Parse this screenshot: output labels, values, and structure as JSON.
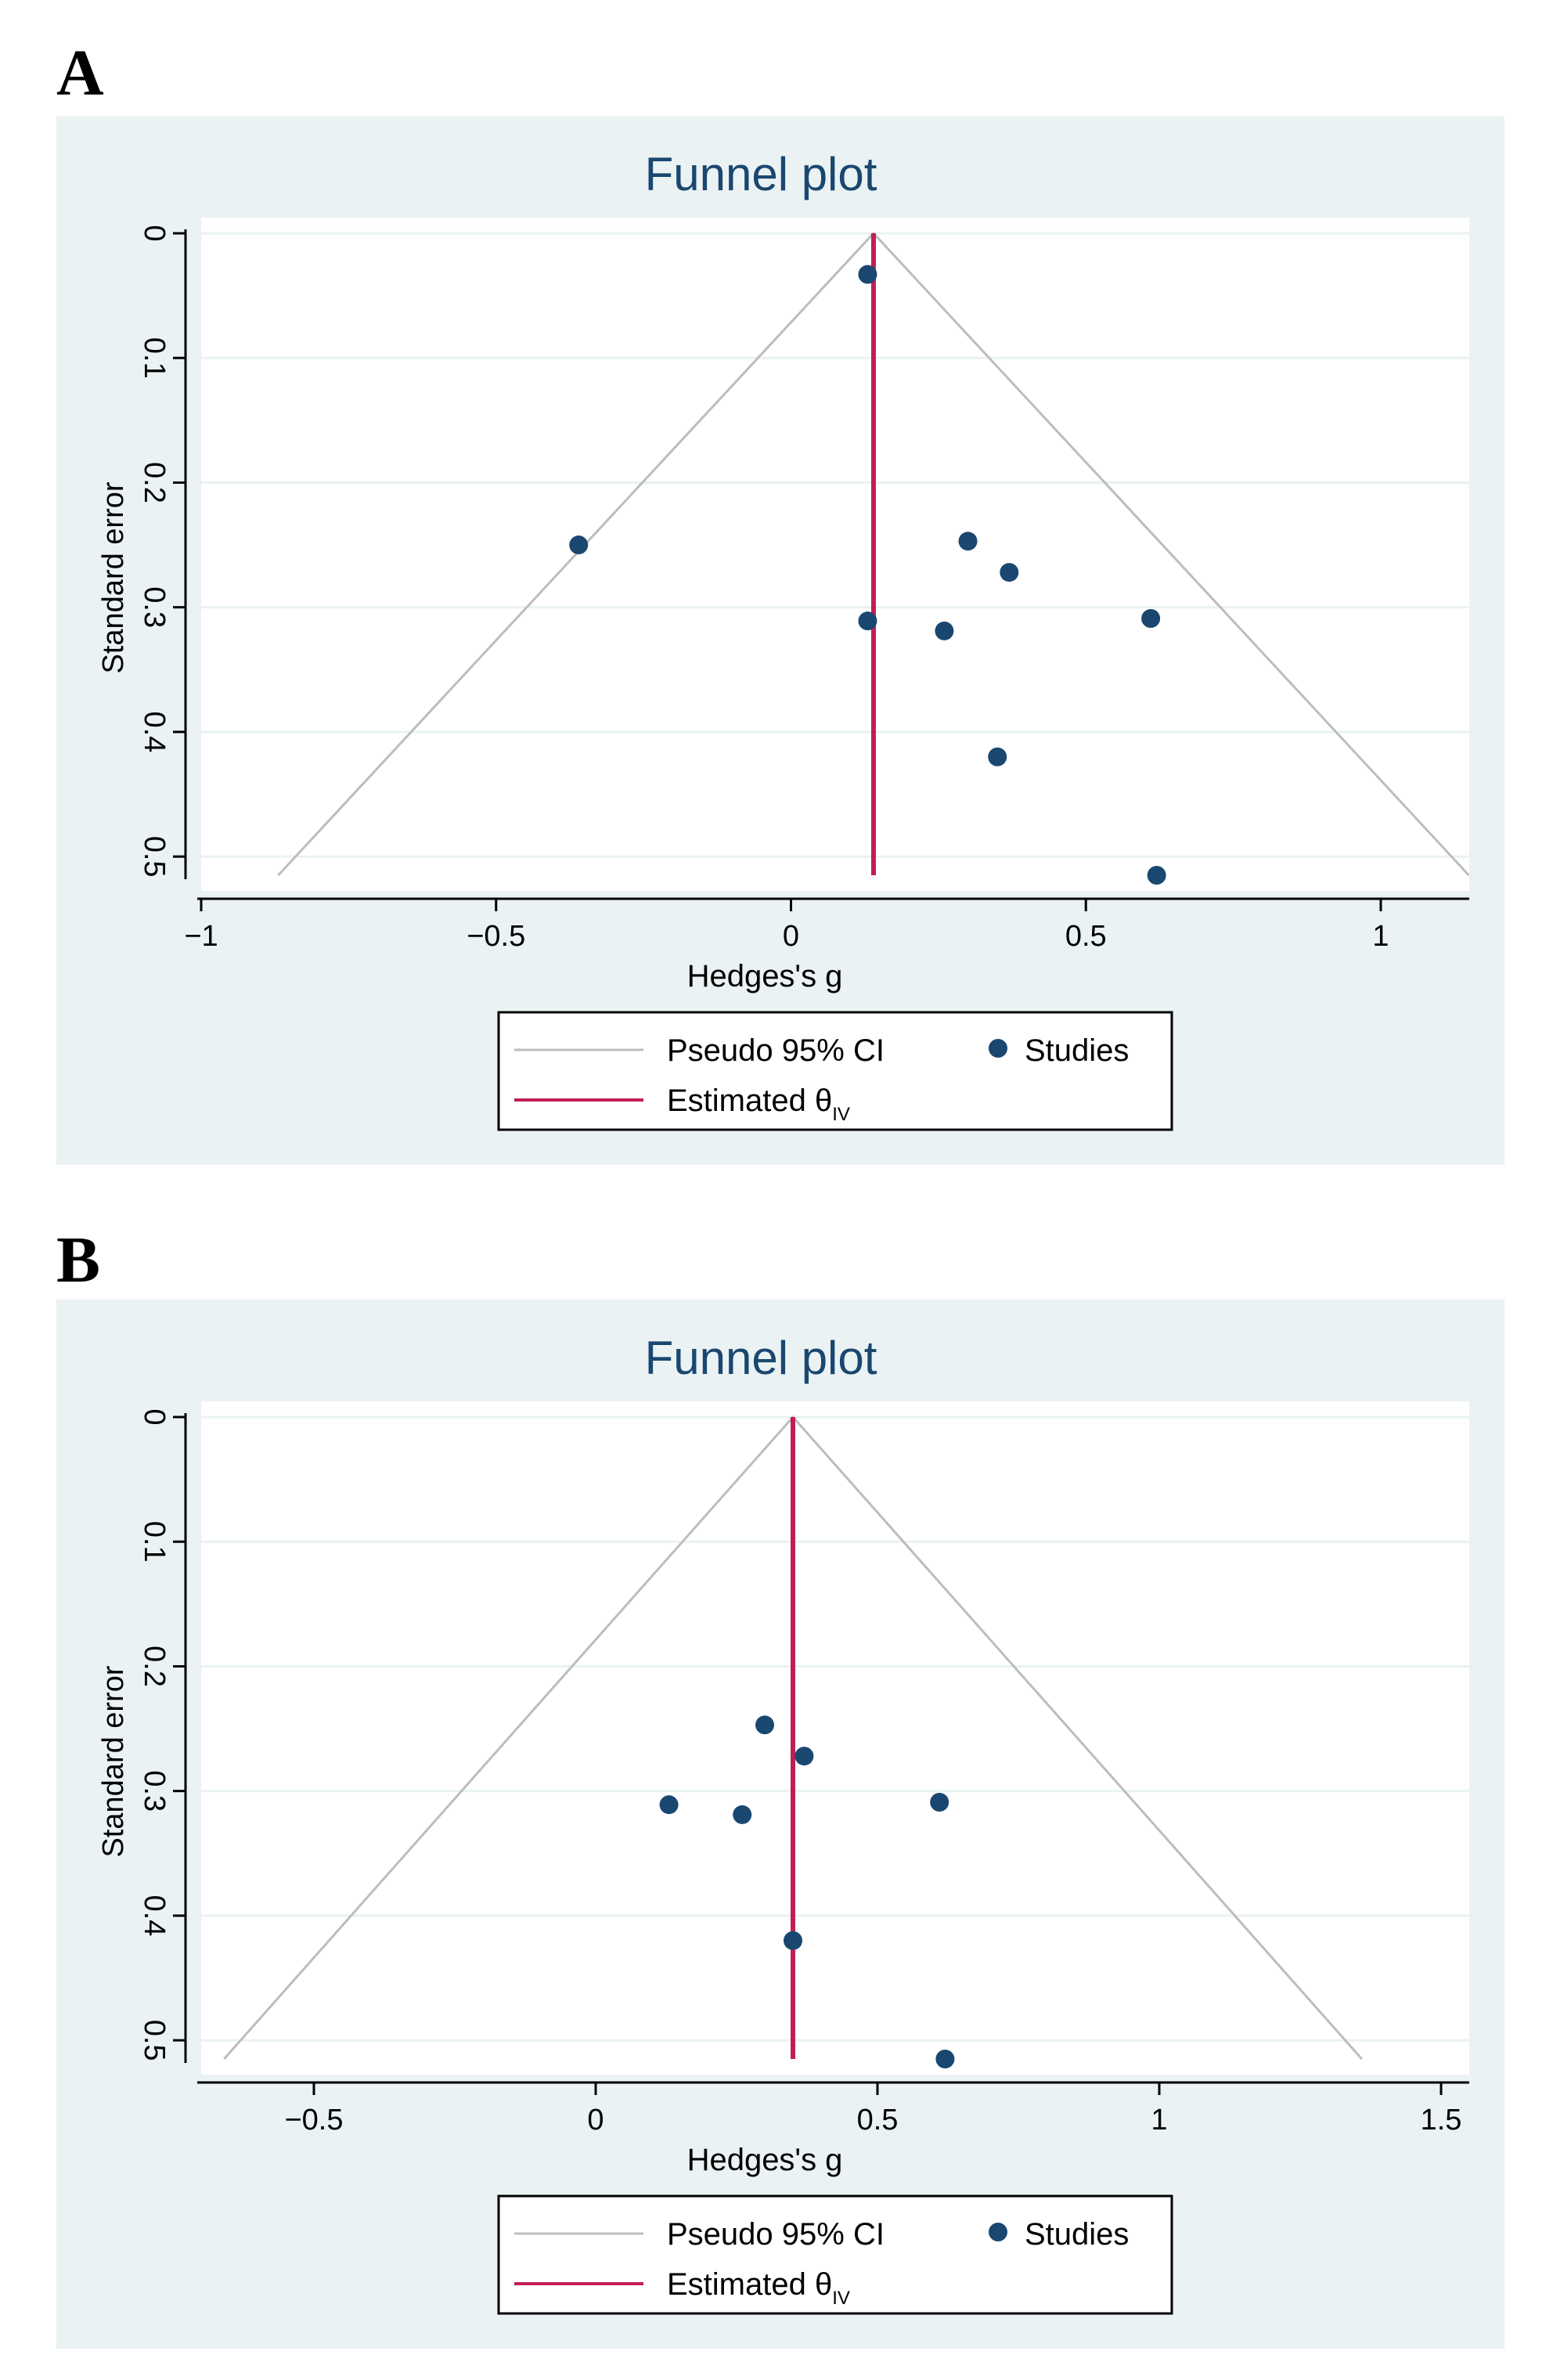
{
  "chart_data": [
    {
      "panel": "A",
      "type": "scatter",
      "title": "Funnel plot",
      "xlabel": "Hedges's g",
      "ylabel": "Standard error",
      "xlim": [
        -1,
        1.15
      ],
      "ylim": [
        0,
        0.515
      ],
      "x_ticks": [
        -1,
        -0.5,
        0,
        0.5,
        1
      ],
      "x_tick_labels": [
        "−1",
        "−0.5",
        "0",
        "0.5",
        "1"
      ],
      "y_ticks": [
        0,
        0.1,
        0.2,
        0.3,
        0.4,
        0.5
      ],
      "y_tick_labels": [
        "0",
        "0.1",
        "0.2",
        "0.3",
        "0.4",
        "0.5"
      ],
      "estimate": 0.14,
      "pseudo_ci_bottom_se": 0.515,
      "studies": [
        {
          "x": 0.13,
          "y": 0.033
        },
        {
          "x": -0.36,
          "y": 0.25
        },
        {
          "x": 0.3,
          "y": 0.247
        },
        {
          "x": 0.37,
          "y": 0.272
        },
        {
          "x": 0.13,
          "y": 0.311
        },
        {
          "x": 0.26,
          "y": 0.319
        },
        {
          "x": 0.61,
          "y": 0.309
        },
        {
          "x": 0.35,
          "y": 0.42
        },
        {
          "x": 0.62,
          "y": 0.515
        }
      ],
      "legend": {
        "ci_label": "Pseudo 95% CI",
        "studies_label": "Studies",
        "estimate_label": "Estimated θ",
        "estimate_subscript": "IV"
      }
    },
    {
      "panel": "B",
      "type": "scatter",
      "title": "Funnel plot",
      "xlabel": "Hedges's g",
      "ylabel": "Standard error",
      "xlim": [
        -0.7,
        1.55
      ],
      "ylim": [
        0,
        0.515
      ],
      "x_ticks": [
        -0.5,
        0,
        0.5,
        1,
        1.5
      ],
      "x_tick_labels": [
        "−0.5",
        "0",
        "0.5",
        "1",
        "1.5"
      ],
      "y_ticks": [
        0,
        0.1,
        0.2,
        0.3,
        0.4,
        0.5
      ],
      "y_tick_labels": [
        "0",
        "0.1",
        "0.2",
        "0.3",
        "0.4",
        "0.5"
      ],
      "estimate": 0.35,
      "pseudo_ci_bottom_se": 0.515,
      "studies": [
        {
          "x": 0.3,
          "y": 0.247
        },
        {
          "x": 0.37,
          "y": 0.272
        },
        {
          "x": 0.13,
          "y": 0.311
        },
        {
          "x": 0.26,
          "y": 0.319
        },
        {
          "x": 0.61,
          "y": 0.309
        },
        {
          "x": 0.35,
          "y": 0.42
        },
        {
          "x": 0.62,
          "y": 0.515
        }
      ],
      "legend": {
        "ci_label": "Pseudo 95% CI",
        "studies_label": "Studies",
        "estimate_label": "Estimated θ",
        "estimate_subscript": "IV"
      }
    }
  ],
  "colors": {
    "panel_bg": "#EAF2F3",
    "plot_bg": "#FFFFFF",
    "grid": "#EAF2F3",
    "title": "#1A476F",
    "ci_line": "#BDBDBD",
    "estimate_line": "#C21E56",
    "points": "#1A476F",
    "axis": "#000000"
  }
}
